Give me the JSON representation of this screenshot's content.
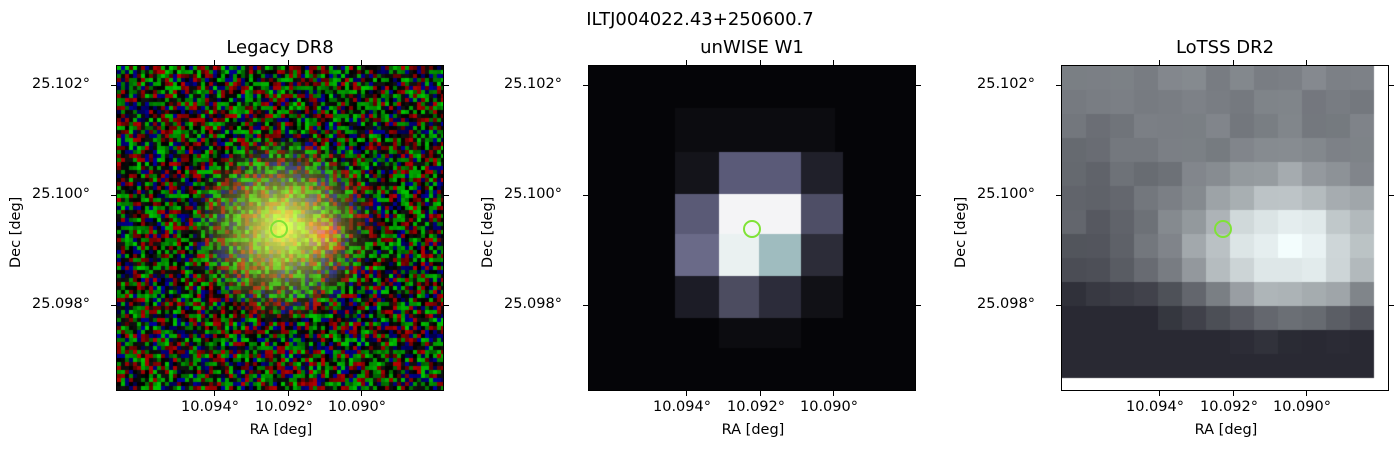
{
  "figure": {
    "title": "ILTJ004022.43+250600.7"
  },
  "panels": [
    {
      "title": "Legacy DR8",
      "xlabel": "RA [deg]",
      "ylabel": "Dec [deg]",
      "xticks": [
        "10.094°",
        "10.092°",
        "10.090°"
      ],
      "yticks": [
        "25.102°",
        "25.100°",
        "25.098°"
      ],
      "marker_color": "#7fe336"
    },
    {
      "title": "unWISE W1",
      "xlabel": "RA [deg]",
      "ylabel": "Dec [deg]",
      "xticks": [
        "10.094°",
        "10.092°",
        "10.090°"
      ],
      "yticks": [
        "25.102°",
        "25.100°",
        "25.098°"
      ],
      "marker_color": "#7fe336"
    },
    {
      "title": "LoTSS DR2",
      "xlabel": "RA [deg]",
      "ylabel": "Dec [deg]",
      "xticks": [
        "10.094°",
        "10.092°",
        "10.090°"
      ],
      "yticks": [
        "25.102°",
        "25.100°",
        "25.098°"
      ],
      "marker_color": "#7fe336"
    }
  ]
}
